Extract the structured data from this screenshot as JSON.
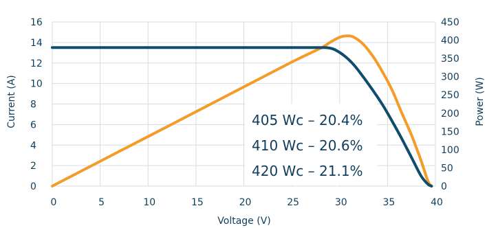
{
  "chart_data": {
    "type": "line",
    "xlabel": "Voltage (V)",
    "ylabel_left": "Current (A)",
    "ylabel_right": "Power (W)",
    "xlim": [
      0,
      40
    ],
    "ylim_left": [
      0,
      16
    ],
    "ylim_right": [
      0,
      450
    ],
    "x_ticks": [
      0,
      5,
      10,
      15,
      20,
      25,
      30,
      35,
      40
    ],
    "y_left_ticks": [
      0,
      2,
      4,
      6,
      8,
      10,
      12,
      14,
      16
    ],
    "y_right_ticks": [
      0,
      50,
      100,
      150,
      200,
      250,
      300,
      350,
      400,
      450
    ],
    "grid": true,
    "series": [
      {
        "axis": "left",
        "color": "#0f4c6e",
        "x": [
          0,
          5,
          10,
          15,
          20,
          25,
          27,
          28,
          28.8,
          29.5,
          30.5,
          31.5,
          32.5,
          33.5,
          34.5,
          35.5,
          36.5,
          37.5,
          38.5,
          39.2,
          39.6
        ],
        "y": [
          13.5,
          13.5,
          13.5,
          13.5,
          13.5,
          13.5,
          13.5,
          13.5,
          13.48,
          13.3,
          12.7,
          11.8,
          10.6,
          9.3,
          7.9,
          6.3,
          4.6,
          2.8,
          1.0,
          0.2,
          0
        ]
      },
      {
        "axis": "right",
        "color": "#f39c2a",
        "x": [
          0,
          5,
          10,
          15,
          20,
          25,
          28,
          29,
          30,
          30.8,
          31.5,
          32.5,
          33.5,
          34.5,
          35.5,
          36.5,
          37.5,
          38.5,
          39.2,
          39.6
        ],
        "y": [
          0,
          68,
          136,
          204,
          272,
          340,
          378,
          394,
          408,
          412,
          408,
          388,
          355,
          312,
          262,
          200,
          140,
          70,
          15,
          0
        ]
      }
    ],
    "annotations": [
      "405 Wc – 20.4%",
      "410 Wc – 20.6%",
      "420 Wc – 21.1%"
    ]
  }
}
